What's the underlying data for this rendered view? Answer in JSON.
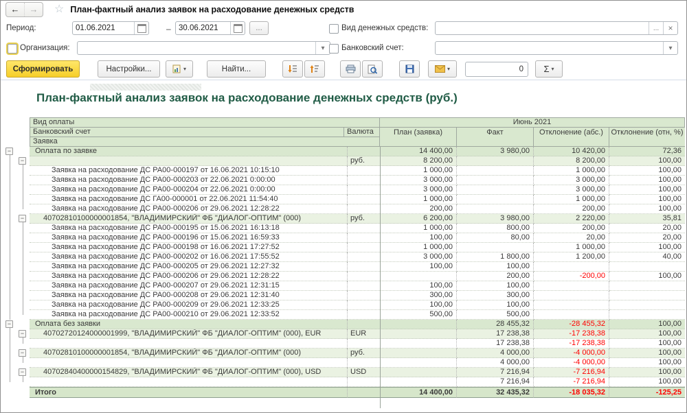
{
  "window": {
    "title": "План-фактный анализ заявок на расходование денежных средств"
  },
  "icons": {
    "back": "←",
    "forward": "→",
    "star": "☆",
    "dropdown": "▾",
    "ellipsis": "...",
    "clear": "×",
    "collapse": "−"
  },
  "filters": {
    "period_label": "Период:",
    "period_from": "01.06.2021",
    "period_to": "30.06.2021",
    "dash": "–",
    "more_button": "...",
    "org_label": "Организация:",
    "org_value": "",
    "cash_type_label": "Вид денежных средств:",
    "cash_type_value": "",
    "bank_account_label": "Банковский счет:",
    "bank_account_value": ""
  },
  "toolbar": {
    "generate": "Сформировать",
    "settings": "Настройки...",
    "find": "Найти...",
    "counter": "0",
    "sigma": "Σ"
  },
  "colors": {
    "accent_yellow": "#f6ce29",
    "group_green": "#d9e8cf",
    "bank_green": "#eaf2e2",
    "negative_red": "#ff0000",
    "title_green": "#215c46"
  },
  "report": {
    "title": "План-фактный анализ заявок на расходование денежных средств (руб.)",
    "header": {
      "payment_type": "Вид оплаты",
      "bank_account": "Банковский счет",
      "currency": "Валюта",
      "request": "Заявка",
      "period_group": "Июнь 2021",
      "columns": [
        "План (заявка)",
        "Факт",
        "Отклонение (абс.)",
        "Отклонение (отн, %)"
      ]
    },
    "rows": [
      {
        "k": "g1",
        "t1": "minus",
        "t2": "",
        "tx": "Оплата по заявке",
        "cur": "",
        "p": "14 400,00",
        "f": "3 980,00",
        "a": "10 420,00",
        "r": "72,36"
      },
      {
        "k": "g2",
        "t1": "line",
        "t2": "minus",
        "tx": "",
        "cur": "руб.",
        "p": "8 200,00",
        "f": "",
        "a": "8 200,00",
        "r": "100,00"
      },
      {
        "k": "d",
        "t1": "line",
        "t2": "line",
        "tx": "Заявка на расходование ДС РА00-000197 от 16.06.2021 10:15:10",
        "cur": "",
        "p": "1 000,00",
        "f": "",
        "a": "1 000,00",
        "r": "100,00"
      },
      {
        "k": "d",
        "t1": "line",
        "t2": "line",
        "tx": "Заявка на расходование ДС РА00-000203 от 22.06.2021 0:00:00",
        "cur": "",
        "p": "3 000,00",
        "f": "",
        "a": "3 000,00",
        "r": "100,00"
      },
      {
        "k": "d",
        "t1": "line",
        "t2": "line",
        "tx": "Заявка на расходование ДС РА00-000204 от 22.06.2021 0:00:00",
        "cur": "",
        "p": "3 000,00",
        "f": "",
        "a": "3 000,00",
        "r": "100,00"
      },
      {
        "k": "d",
        "t1": "line",
        "t2": "line",
        "tx": "Заявка на расходование ДС ГА00-000001 от 22.06.2021 11:54:40",
        "cur": "",
        "p": "1 000,00",
        "f": "",
        "a": "1 000,00",
        "r": "100,00"
      },
      {
        "k": "d",
        "t1": "line",
        "t2": "end",
        "tx": "Заявка на расходование ДС РА00-000206 от 29.06.2021 12:28:22",
        "cur": "",
        "p": "200,00",
        "f": "",
        "a": "200,00",
        "r": "100,00"
      },
      {
        "k": "g2",
        "t1": "line",
        "t2": "minus",
        "tx": "40702810100000001854, \"ВЛАДИМИРСКИЙ\" ФБ \"ДИАЛОГ-ОПТИМ\" (000)",
        "cur": "руб.",
        "p": "6 200,00",
        "f": "3 980,00",
        "a": "2 220,00",
        "r": "35,81"
      },
      {
        "k": "d",
        "t1": "line",
        "t2": "line",
        "tx": "Заявка на расходование ДС РА00-000195 от 15.06.2021 16:13:18",
        "cur": "",
        "p": "1 000,00",
        "f": "800,00",
        "a": "200,00",
        "r": "20,00"
      },
      {
        "k": "d",
        "t1": "line",
        "t2": "line",
        "tx": "Заявка на расходование ДС РА00-000196 от 15.06.2021 16:59:33",
        "cur": "",
        "p": "100,00",
        "f": "80,00",
        "a": "20,00",
        "r": "20,00"
      },
      {
        "k": "d",
        "t1": "line",
        "t2": "line",
        "tx": "Заявка на расходование ДС РА00-000198 от 16.06.2021 17:27:52",
        "cur": "",
        "p": "1 000,00",
        "f": "",
        "a": "1 000,00",
        "r": "100,00"
      },
      {
        "k": "d",
        "t1": "line",
        "t2": "line",
        "tx": "Заявка на расходование ДС РА00-000202 от 16.06.2021 17:55:52",
        "cur": "",
        "p": "3 000,00",
        "f": "1 800,00",
        "a": "1 200,00",
        "r": "40,00"
      },
      {
        "k": "d",
        "t1": "line",
        "t2": "line",
        "tx": "Заявка на расходование ДС РА00-000205 от 29.06.2021 12:27:32",
        "cur": "",
        "p": "100,00",
        "f": "100,00",
        "a": "",
        "r": ""
      },
      {
        "k": "d",
        "t1": "line",
        "t2": "line",
        "tx": "Заявка на расходование ДС РА00-000206 от 29.06.2021 12:28:22",
        "cur": "",
        "p": "",
        "f": "200,00",
        "a": "-200,00",
        "r": "100,00"
      },
      {
        "k": "d",
        "t1": "line",
        "t2": "line",
        "tx": "Заявка на расходование ДС РА00-000207 от 29.06.2021 12:31:15",
        "cur": "",
        "p": "100,00",
        "f": "100,00",
        "a": "",
        "r": ""
      },
      {
        "k": "d",
        "t1": "line",
        "t2": "line",
        "tx": "Заявка на расходование ДС РА00-000208 от 29.06.2021 12:31:40",
        "cur": "",
        "p": "300,00",
        "f": "300,00",
        "a": "",
        "r": ""
      },
      {
        "k": "d",
        "t1": "line",
        "t2": "line",
        "tx": "Заявка на расходование ДС РА00-000209 от 29.06.2021 12:33:25",
        "cur": "",
        "p": "100,00",
        "f": "100,00",
        "a": "",
        "r": ""
      },
      {
        "k": "d",
        "t1": "line",
        "t2": "end",
        "tx": "Заявка на расходование ДС РА00-000210 от 29.06.2021 12:33:52",
        "cur": "",
        "p": "500,00",
        "f": "500,00",
        "a": "",
        "r": ""
      },
      {
        "k": "g1",
        "t1": "minus",
        "t2": "",
        "tx": "Оплата без заявки",
        "cur": "",
        "p": "",
        "f": "28 455,32",
        "a": "-28 455,32",
        "r": "100,00"
      },
      {
        "k": "g2",
        "t1": "line",
        "t2": "minus",
        "tx": "40702720124000001999, \"ВЛАДИМИРСКИЙ\" ФБ \"ДИАЛОГ-ОПТИМ\" (000), EUR",
        "cur": "EUR",
        "p": "",
        "f": "17 238,38",
        "a": "-17 238,38",
        "r": "100,00"
      },
      {
        "k": "d",
        "t1": "line",
        "t2": "end",
        "tx": "",
        "cur": "",
        "p": "",
        "f": "17 238,38",
        "a": "-17 238,38",
        "r": "100,00"
      },
      {
        "k": "g2",
        "t1": "line",
        "t2": "minus",
        "tx": "40702810100000001854, \"ВЛАДИМИРСКИЙ\" ФБ \"ДИАЛОГ-ОПТИМ\" (000)",
        "cur": "руб.",
        "p": "",
        "f": "4 000,00",
        "a": "-4 000,00",
        "r": "100,00"
      },
      {
        "k": "d",
        "t1": "line",
        "t2": "end",
        "tx": "",
        "cur": "",
        "p": "",
        "f": "4 000,00",
        "a": "-4 000,00",
        "r": "100,00"
      },
      {
        "k": "g2",
        "t1": "line",
        "t2": "minus",
        "tx": "40702840400000154829, \"ВЛАДИМИРСКИЙ\" ФБ \"ДИАЛОГ-ОПТИМ\" (000), USD",
        "cur": "USD",
        "p": "",
        "f": "7 216,94",
        "a": "-7 216,94",
        "r": "100,00"
      },
      {
        "k": "d",
        "t1": "end",
        "t2": "end",
        "tx": "",
        "cur": "",
        "p": "",
        "f": "7 216,94",
        "a": "-7 216,94",
        "r": "100,00"
      },
      {
        "k": "total",
        "t1": "",
        "t2": "",
        "tx": "Итого",
        "cur": "",
        "p": "14 400,00",
        "f": "32 435,32",
        "a": "-18 035,32",
        "r": "-125,25"
      }
    ]
  }
}
